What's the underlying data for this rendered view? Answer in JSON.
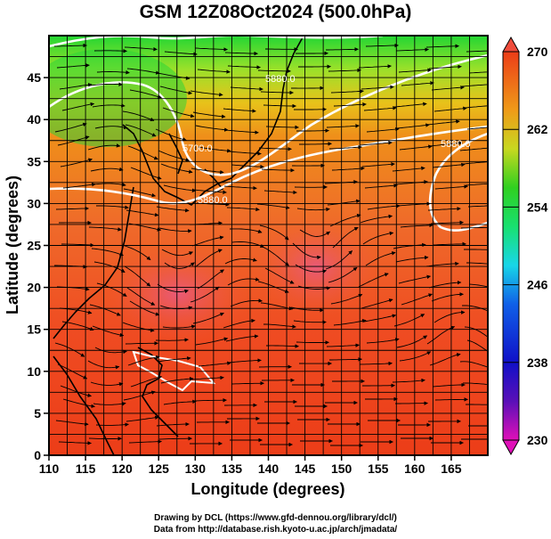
{
  "title": "GSM 12Z08Oct2024 (500.0hPa)",
  "xlabel": "Longitude (degrees)",
  "ylabel": "Latitude  (degrees)",
  "x_ticks": [
    "110",
    "115",
    "120",
    "125",
    "130",
    "135",
    "140",
    "145",
    "150",
    "155",
    "160",
    "165"
  ],
  "y_ticks": [
    "0",
    "5",
    "10",
    "15",
    "20",
    "25",
    "30",
    "35",
    "40",
    "45"
  ],
  "colorbar": {
    "labels": [
      "230",
      "238",
      "246",
      "254",
      "262",
      "270"
    ]
  },
  "contour_labels": [
    "5880.0",
    "5700.0",
    "5880.0",
    "5880.0"
  ],
  "credits": {
    "line1": "Drawing by DCL (https://www.gfd-dennou.org/library/dcl/)",
    "line2": "Data from http://database.rish.kyoto-u.ac.jp/arch/jmadata/"
  },
  "colors": {
    "contour": "#ffffff",
    "streamline": "#000000",
    "coast": "#000000"
  }
}
